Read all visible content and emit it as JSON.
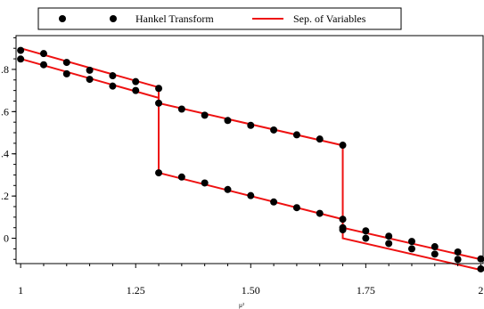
{
  "chart_data": {
    "type": "line",
    "title": "",
    "xlabel": "µ²",
    "ylabel": "",
    "xlim": [
      0.99,
      2.005
    ],
    "ylim": [
      -0.12,
      0.96
    ],
    "x_ticks": [
      1,
      1.25,
      1.5,
      1.75,
      2
    ],
    "x_tick_labels": [
      "1",
      "1.25",
      "1.50",
      "1.75",
      "2"
    ],
    "y_ticks": [
      0.8,
      0.6,
      0.4,
      0.2,
      0.0
    ],
    "y_tick_labels": [
      ".8",
      ".6",
      ".4",
      ".2",
      "0"
    ],
    "grid": false,
    "legend_position": "top",
    "colors": {
      "line": "#ee1111",
      "points": "#000000"
    },
    "series": [
      {
        "name": "Hankel Transform",
        "style": "markers",
        "points": [
          [
            1.0,
            0.89
          ],
          [
            1.05,
            0.875
          ],
          [
            1.1,
            0.833
          ],
          [
            1.15,
            0.796
          ],
          [
            1.2,
            0.77
          ],
          [
            1.25,
            0.742
          ],
          [
            1.3,
            0.71
          ],
          [
            1.3,
            0.31
          ],
          [
            1.35,
            0.29
          ],
          [
            1.4,
            0.262
          ],
          [
            1.45,
            0.231
          ],
          [
            1.5,
            0.202
          ],
          [
            1.55,
            0.172
          ],
          [
            1.6,
            0.145
          ],
          [
            1.65,
            0.118
          ],
          [
            1.7,
            0.09
          ],
          [
            1.7,
            0.05
          ],
          [
            1.75,
            0.035
          ],
          [
            1.8,
            0.01
          ],
          [
            1.85,
            -0.015
          ],
          [
            1.9,
            -0.04
          ],
          [
            1.95,
            -0.065
          ],
          [
            2.0,
            -0.098
          ],
          [
            1.0,
            0.849
          ],
          [
            1.05,
            0.822
          ],
          [
            1.1,
            0.779
          ],
          [
            1.15,
            0.753
          ],
          [
            1.2,
            0.721
          ],
          [
            1.25,
            0.7
          ],
          [
            1.3,
            0.64
          ],
          [
            1.35,
            0.612
          ],
          [
            1.4,
            0.583
          ],
          [
            1.45,
            0.558
          ],
          [
            1.5,
            0.535
          ],
          [
            1.55,
            0.513
          ],
          [
            1.6,
            0.49
          ],
          [
            1.65,
            0.47
          ],
          [
            1.7,
            0.441
          ],
          [
            1.7,
            0.04
          ],
          [
            1.75,
            0.0
          ],
          [
            1.8,
            -0.025
          ],
          [
            1.85,
            -0.05
          ],
          [
            1.9,
            -0.075
          ],
          [
            1.95,
            -0.1
          ],
          [
            2.0,
            -0.145
          ]
        ]
      },
      {
        "name": "Sep. of Variables",
        "style": "line",
        "segments": [
          [
            [
              1.0,
              0.9
            ],
            [
              1.3,
              0.715
            ]
          ],
          [
            [
              1.0,
              0.85
            ],
            [
              1.3,
              0.665
            ],
            [
              1.3,
              0.64
            ],
            [
              1.7,
              0.44
            ]
          ],
          [
            [
              1.3,
              0.71
            ],
            [
              1.3,
              0.31
            ]
          ],
          [
            [
              1.3,
              0.31
            ],
            [
              1.7,
              0.09
            ],
            [
              1.7,
              0.05
            ],
            [
              2.0,
              -0.1
            ]
          ],
          [
            [
              1.7,
              0.44
            ],
            [
              1.7,
              0.0
            ],
            [
              2.0,
              -0.15
            ]
          ]
        ]
      }
    ]
  }
}
